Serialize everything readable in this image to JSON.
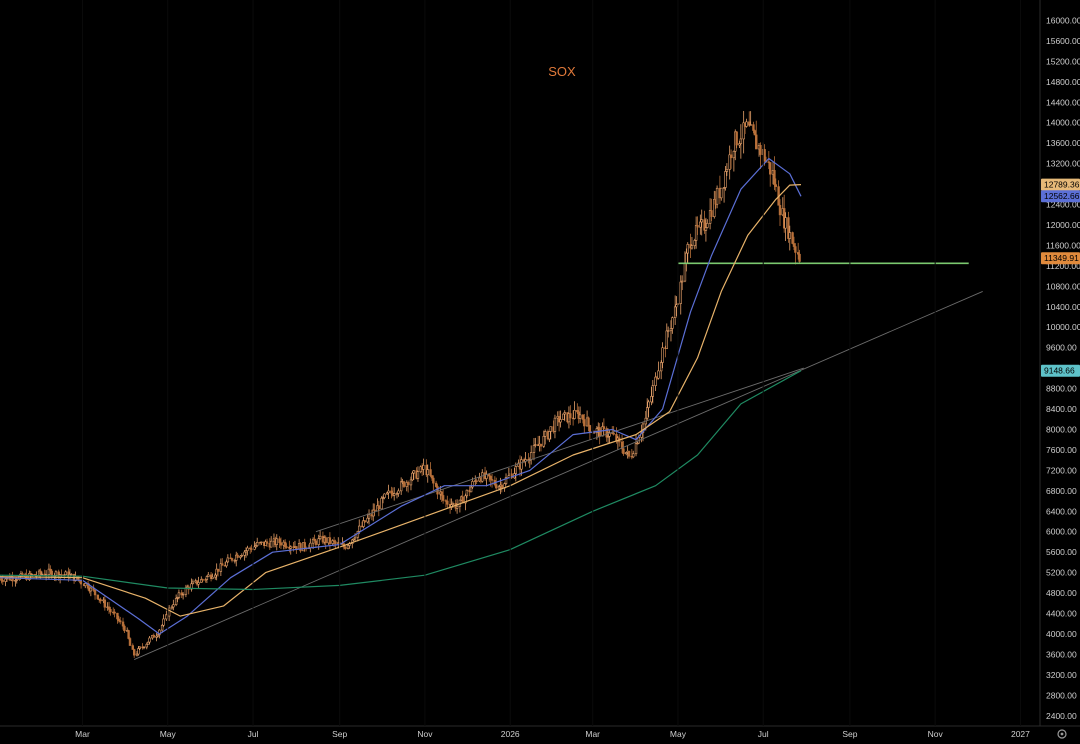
{
  "chart_data": {
    "type": "candlestick",
    "title": "SOX",
    "ylim": [
      2200,
      16400
    ],
    "y_ticks": [
      2400,
      2800,
      3200,
      3600,
      4000,
      4400,
      4800,
      5200,
      5600,
      6000,
      6400,
      6800,
      7200,
      7600,
      8000,
      8400,
      8800,
      9200,
      9600,
      10000,
      10400,
      10800,
      11200,
      11600,
      12000,
      12400,
      12800,
      13200,
      13600,
      14000,
      14400,
      14800,
      15200,
      15600,
      16000
    ],
    "x_range": [
      "2025-01-01",
      "2027-01-15"
    ],
    "x_ticks": [
      {
        "date": "2025-03-01",
        "label": "Mar"
      },
      {
        "date": "2025-05-01",
        "label": "May"
      },
      {
        "date": "2025-07-01",
        "label": "Jul"
      },
      {
        "date": "2025-09-01",
        "label": "Sep"
      },
      {
        "date": "2025-11-01",
        "label": "Nov"
      },
      {
        "date": "2026-01-01",
        "label": "2026"
      },
      {
        "date": "2026-03-01",
        "label": "Mar"
      },
      {
        "date": "2026-05-01",
        "label": "May"
      },
      {
        "date": "2026-07-01",
        "label": "Jul"
      },
      {
        "date": "2026-09-01",
        "label": "Sep"
      },
      {
        "date": "2026-11-01",
        "label": "Nov"
      },
      {
        "date": "2027-01-01",
        "label": "2027"
      }
    ],
    "price_path": [
      [
        "2025-01-01",
        5080
      ],
      [
        "2025-01-20",
        5120
      ],
      [
        "2025-02-05",
        5200
      ],
      [
        "2025-02-20",
        5150
      ],
      [
        "2025-03-05",
        4950
      ],
      [
        "2025-03-20",
        4500
      ],
      [
        "2025-04-01",
        4100
      ],
      [
        "2025-04-07",
        3580
      ],
      [
        "2025-04-15",
        3800
      ],
      [
        "2025-04-25",
        4050
      ],
      [
        "2025-05-05",
        4600
      ],
      [
        "2025-05-15",
        4900
      ],
      [
        "2025-06-01",
        5150
      ],
      [
        "2025-06-20",
        5550
      ],
      [
        "2025-07-05",
        5750
      ],
      [
        "2025-07-20",
        5800
      ],
      [
        "2025-08-05",
        5700
      ],
      [
        "2025-08-20",
        5850
      ],
      [
        "2025-09-05",
        5700
      ],
      [
        "2025-09-20",
        6200
      ],
      [
        "2025-10-05",
        6700
      ],
      [
        "2025-10-20",
        7000
      ],
      [
        "2025-11-01",
        7250
      ],
      [
        "2025-11-15",
        6600
      ],
      [
        "2025-11-25",
        6500
      ],
      [
        "2025-12-10",
        7100
      ],
      [
        "2025-12-25",
        6900
      ],
      [
        "2026-01-10",
        7350
      ],
      [
        "2026-01-25",
        7800
      ],
      [
        "2026-02-05",
        8200
      ],
      [
        "2026-02-20",
        8300
      ],
      [
        "2026-03-01",
        8000
      ],
      [
        "2026-03-15",
        7900
      ],
      [
        "2026-03-28",
        7450
      ],
      [
        "2026-04-08",
        8200
      ],
      [
        "2026-04-20",
        9500
      ],
      [
        "2026-05-01",
        10500
      ],
      [
        "2026-05-10",
        11700
      ],
      [
        "2026-05-20",
        12000
      ],
      [
        "2026-06-01",
        12700
      ],
      [
        "2026-06-10",
        13600
      ],
      [
        "2026-06-20",
        13900
      ],
      [
        "2026-07-01",
        13400
      ],
      [
        "2026-07-08",
        13000
      ],
      [
        "2026-07-15",
        12200
      ],
      [
        "2026-07-22",
        11700
      ],
      [
        "2026-07-28",
        11350
      ]
    ],
    "series": [
      {
        "color": "#5b6fd6",
        "values": [
          [
            "2025-01-01",
            5100
          ],
          [
            "2025-03-01",
            5050
          ],
          [
            "2025-04-10",
            4300
          ],
          [
            "2025-04-25",
            4000
          ],
          [
            "2025-05-15",
            4350
          ],
          [
            "2025-06-15",
            5100
          ],
          [
            "2025-07-15",
            5600
          ],
          [
            "2025-09-01",
            5750
          ],
          [
            "2025-10-15",
            6500
          ],
          [
            "2025-11-15",
            6900
          ],
          [
            "2025-12-15",
            6900
          ],
          [
            "2026-01-15",
            7200
          ],
          [
            "2026-02-15",
            7900
          ],
          [
            "2026-03-15",
            8000
          ],
          [
            "2026-04-01",
            7800
          ],
          [
            "2026-04-20",
            8400
          ],
          [
            "2026-05-10",
            10300
          ],
          [
            "2026-05-25",
            11400
          ],
          [
            "2026-06-15",
            12700
          ],
          [
            "2026-07-05",
            13300
          ],
          [
            "2026-07-20",
            13000
          ],
          [
            "2026-07-28",
            12560
          ]
        ]
      },
      {
        "color": "#e8b36a",
        "values": [
          [
            "2025-01-01",
            5120
          ],
          [
            "2025-03-01",
            5100
          ],
          [
            "2025-04-15",
            4700
          ],
          [
            "2025-05-10",
            4350
          ],
          [
            "2025-06-10",
            4550
          ],
          [
            "2025-07-10",
            5200
          ],
          [
            "2025-09-01",
            5700
          ],
          [
            "2025-11-01",
            6300
          ],
          [
            "2026-01-01",
            6900
          ],
          [
            "2026-02-15",
            7500
          ],
          [
            "2026-04-01",
            7900
          ],
          [
            "2026-04-25",
            8350
          ],
          [
            "2026-05-15",
            9400
          ],
          [
            "2026-06-01",
            10700
          ],
          [
            "2026-06-20",
            11800
          ],
          [
            "2026-07-10",
            12500
          ],
          [
            "2026-07-20",
            12780
          ],
          [
            "2026-07-28",
            12790
          ]
        ]
      },
      {
        "color": "#1f8a62",
        "values": [
          [
            "2025-01-01",
            5150
          ],
          [
            "2025-03-01",
            5130
          ],
          [
            "2025-05-01",
            4900
          ],
          [
            "2025-07-01",
            4870
          ],
          [
            "2025-09-01",
            4950
          ],
          [
            "2025-11-01",
            5150
          ],
          [
            "2026-01-01",
            5650
          ],
          [
            "2026-03-01",
            6400
          ],
          [
            "2026-04-15",
            6900
          ],
          [
            "2026-05-15",
            7500
          ],
          [
            "2026-06-15",
            8500
          ],
          [
            "2026-07-28",
            9150
          ]
        ]
      }
    ],
    "horizontal_lines": [
      {
        "price": 11250,
        "from": "2026-05-01",
        "to": "2026-11-25",
        "color": "#7bc96f"
      }
    ],
    "trend_lines": [
      {
        "from": [
          "2025-04-07",
          3500
        ],
        "to": [
          "2026-12-05",
          10700
        ],
        "color": "#6b6b6b"
      },
      {
        "from": [
          "2025-08-15",
          6000
        ],
        "to": [
          "2026-07-30",
          9200
        ],
        "color": "#6b6b6b"
      }
    ],
    "price_badges": [
      {
        "value": 12789.36,
        "label": "12789.36",
        "bg": "#e6b978"
      },
      {
        "value": 12562.66,
        "label": "12562.66",
        "bg": "#5b6fd6"
      },
      {
        "value": 11349.91,
        "label": "11349.91",
        "bg": "#e08a3c"
      },
      {
        "value": 9148.66,
        "label": "9148.66",
        "bg": "#5ec2c9"
      }
    ],
    "settings_icon": "gear-icon"
  }
}
